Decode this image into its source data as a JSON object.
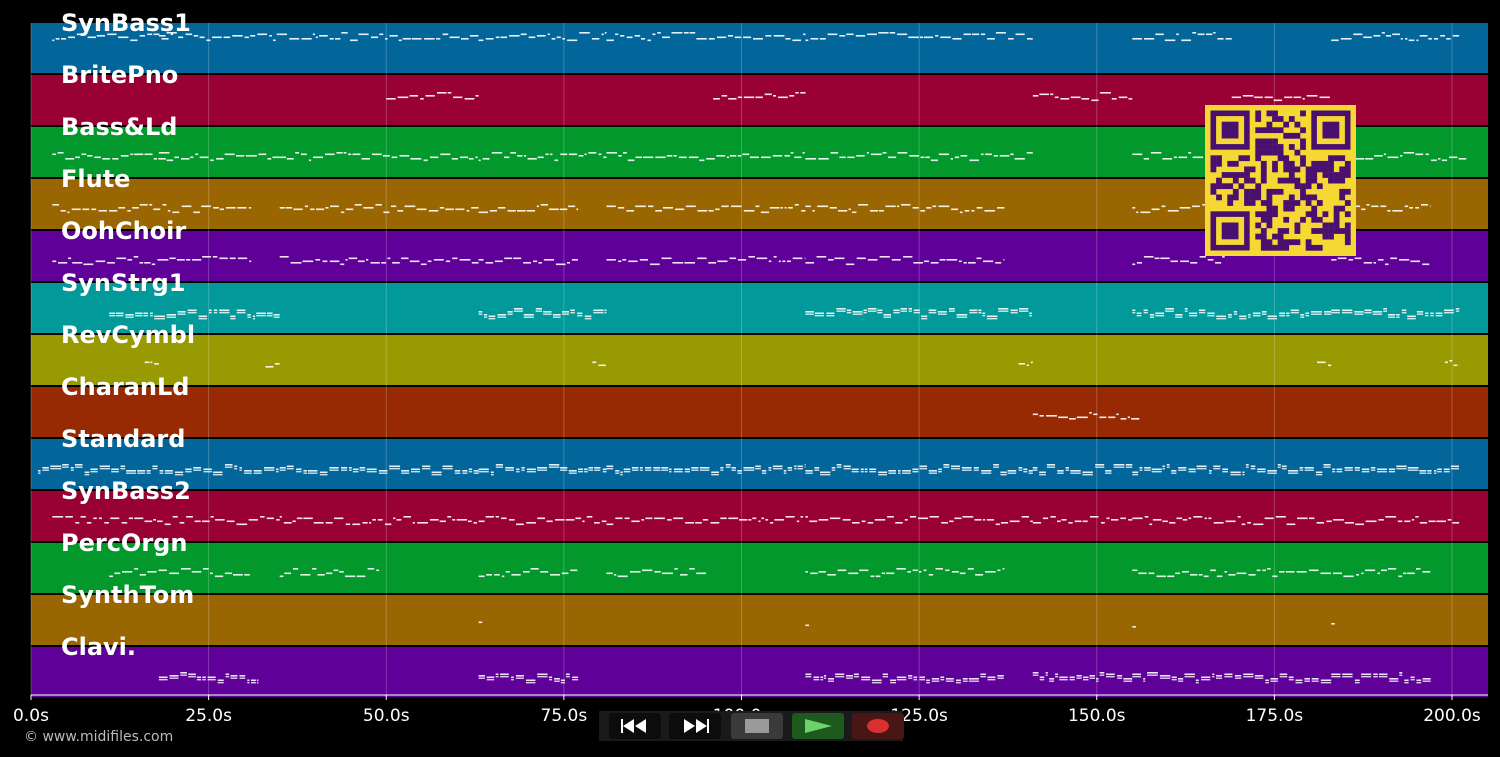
{
  "app": {
    "copyright": "© www.midifiles.com"
  },
  "tracks": [
    {
      "name": "SynBass1",
      "color": "#02669b"
    },
    {
      "name": "BritePno",
      "color": "#990033"
    },
    {
      "name": "Bass&Ld",
      "color": "#03982b"
    },
    {
      "name": "Flute",
      "color": "#9a6602"
    },
    {
      "name": "OohChoir",
      "color": "#5f0198"
    },
    {
      "name": "SynStrg1",
      "color": "#02999a"
    },
    {
      "name": "RevCymbl",
      "color": "#999a02"
    },
    {
      "name": "CharanLd",
      "color": "#982a03"
    },
    {
      "name": "Standard",
      "color": "#02669b"
    },
    {
      "name": "SynBass2",
      "color": "#990033"
    },
    {
      "name": "PercOrgn",
      "color": "#03982b"
    },
    {
      "name": "SynthTom",
      "color": "#9a6602"
    },
    {
      "name": "Clavi.",
      "color": "#5f0198"
    }
  ],
  "timeline": {
    "ticks": [
      "0.0s",
      "25.0s",
      "50.0s",
      "75.0s",
      "100.0s",
      "125.0s",
      "150.0s",
      "175.0s",
      "200.0s"
    ],
    "max_seconds": 205
  },
  "note_segments": [
    [
      [
        3,
        20
      ],
      [
        18,
        35
      ],
      [
        35,
        63
      ],
      [
        63,
        81
      ],
      [
        81,
        109
      ],
      [
        109,
        141
      ],
      [
        155,
        169
      ],
      [
        183,
        201
      ]
    ],
    [
      [
        50,
        63
      ],
      [
        96,
        109
      ],
      [
        141,
        155
      ],
      [
        169,
        183
      ]
    ],
    [
      [
        3,
        20
      ],
      [
        18,
        35
      ],
      [
        35,
        63
      ],
      [
        63,
        81
      ],
      [
        81,
        109
      ],
      [
        109,
        141
      ],
      [
        155,
        170
      ],
      [
        183,
        202
      ]
    ],
    [
      [
        3,
        31
      ],
      [
        35,
        63
      ],
      [
        63,
        77
      ],
      [
        81,
        109
      ],
      [
        109,
        137
      ],
      [
        155,
        168
      ],
      [
        183,
        197
      ]
    ],
    [
      [
        3,
        31
      ],
      [
        35,
        63
      ],
      [
        63,
        77
      ],
      [
        81,
        109
      ],
      [
        109,
        137
      ],
      [
        155,
        168
      ],
      [
        183,
        197
      ]
    ],
    [
      [
        11,
        35
      ],
      [
        63,
        81
      ],
      [
        109,
        141
      ],
      [
        155,
        183
      ],
      [
        183,
        201
      ]
    ],
    [
      [
        16,
        18
      ],
      [
        33,
        35
      ],
      [
        79,
        81
      ],
      [
        139,
        141
      ],
      [
        181,
        183
      ],
      [
        199,
        201
      ]
    ],
    [
      [
        141,
        156
      ]
    ],
    [
      [
        1,
        35
      ],
      [
        35,
        63
      ],
      [
        63,
        81
      ],
      [
        81,
        109
      ],
      [
        109,
        141
      ],
      [
        141,
        155
      ],
      [
        155,
        201
      ]
    ],
    [
      [
        3,
        35
      ],
      [
        35,
        63
      ],
      [
        63,
        81
      ],
      [
        81,
        109
      ],
      [
        109,
        141
      ],
      [
        141,
        155
      ],
      [
        155,
        201
      ]
    ],
    [
      [
        11,
        31
      ],
      [
        35,
        49
      ],
      [
        63,
        77
      ],
      [
        81,
        95
      ],
      [
        109,
        137
      ],
      [
        155,
        197
      ]
    ],
    [
      [
        63,
        63.5
      ],
      [
        109,
        109.5
      ],
      [
        155,
        155.5
      ],
      [
        183,
        183.5
      ]
    ],
    [
      [
        18,
        32
      ],
      [
        63,
        77
      ],
      [
        109,
        137
      ],
      [
        141,
        155
      ],
      [
        155,
        183
      ],
      [
        183,
        197
      ]
    ]
  ],
  "transport": {
    "rewind": "rewind-icon",
    "fast_forward": "fast-forward-icon",
    "stop": "stop-icon",
    "play": "play-icon",
    "record": "record-icon"
  }
}
